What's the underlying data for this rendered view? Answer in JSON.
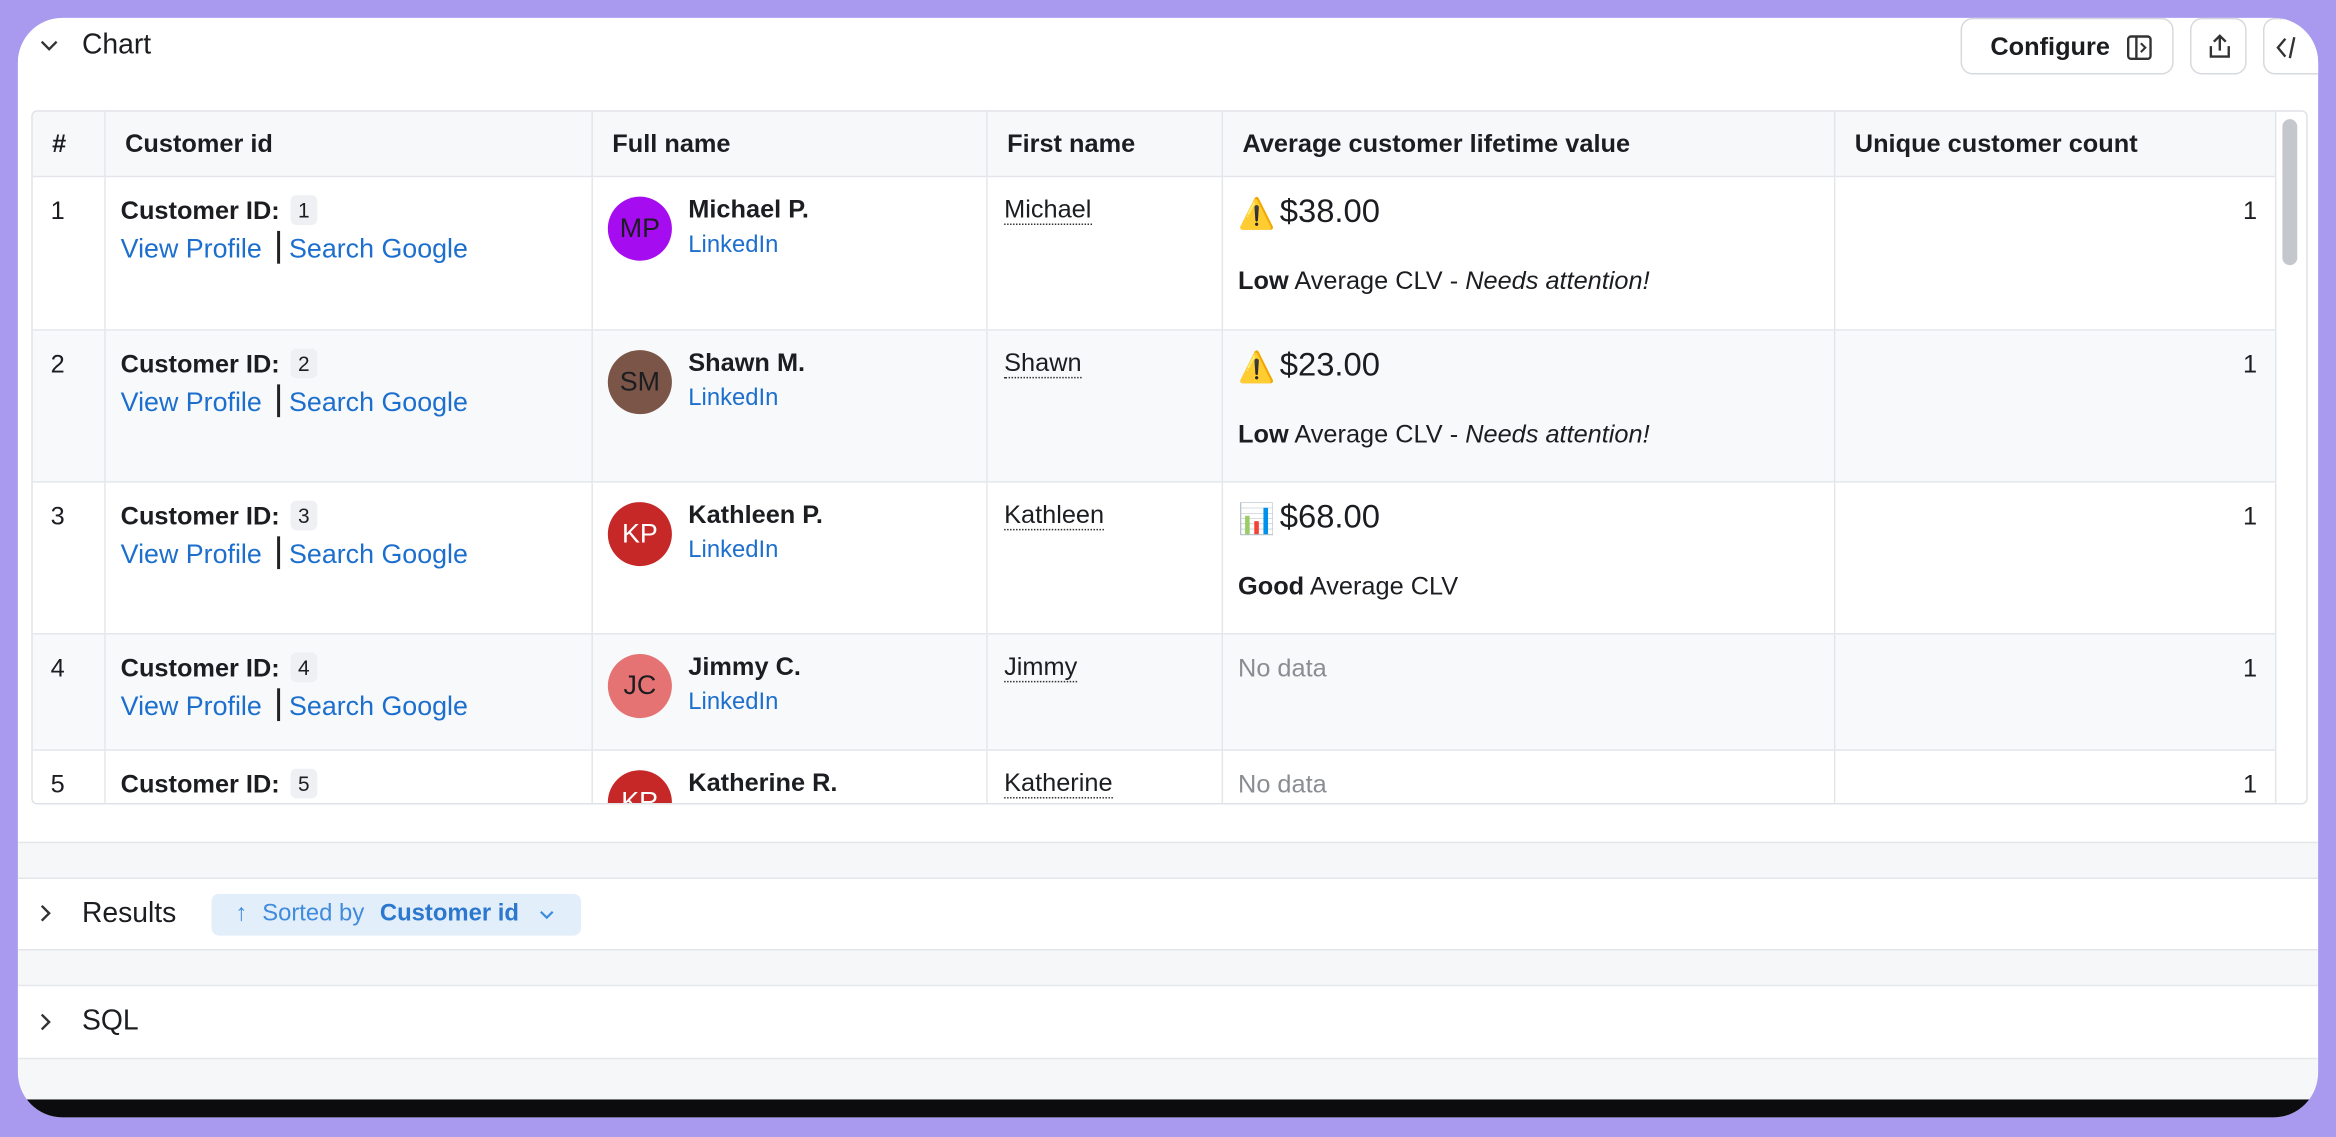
{
  "header": {
    "title": "Chart",
    "configure": "Configure"
  },
  "table": {
    "columns": [
      "#",
      "Customer id",
      "Full name",
      "First name",
      "Average customer lifetime value",
      "Unique customer count"
    ],
    "rows": [
      {
        "index": 1,
        "id_label": "Customer ID:",
        "id": 1,
        "links": [
          "View Profile",
          "Search Google"
        ],
        "initials": "MP",
        "avatar_color": "#a50df0",
        "name": "Michael P.",
        "linkedin": "LinkedIn",
        "first": "Michael",
        "clv_icon": "⚠️",
        "clv": "$38.00",
        "rating": "Low",
        "rating_rest": "Average CLV",
        "dash": "-",
        "note": "Needs attention!",
        "count": 1
      },
      {
        "index": 2,
        "id_label": "Customer ID:",
        "id": 2,
        "links": [
          "View Profile",
          "Search Google"
        ],
        "initials": "SM",
        "avatar_color": "#7a5548",
        "name": "Shawn M.",
        "linkedin": "LinkedIn",
        "first": "Shawn",
        "clv_icon": "⚠️",
        "clv": "$23.00",
        "rating": "Low",
        "rating_rest": "Average CLV",
        "dash": "-",
        "note": "Needs attention!",
        "count": 1
      },
      {
        "index": 3,
        "id_label": "Customer ID:",
        "id": 3,
        "links": [
          "View Profile",
          "Search Google"
        ],
        "initials": "KP",
        "avatar_color": "#c62828",
        "name": "Kathleen P.",
        "linkedin": "LinkedIn",
        "first": "Kathleen",
        "clv_icon": "📊",
        "clv": "$68.00",
        "rating": "Good",
        "rating_rest": "Average CLV",
        "count": 1
      },
      {
        "index": 4,
        "id_label": "Customer ID:",
        "id": 4,
        "links": [
          "View Profile",
          "Search Google"
        ],
        "initials": "JC",
        "avatar_color": "#e57373",
        "name": "Jimmy C.",
        "linkedin": "LinkedIn",
        "first": "Jimmy",
        "no_data": "No data",
        "count": 1
      },
      {
        "index": 5,
        "id_label": "Customer ID:",
        "id": 5,
        "initials": "KR",
        "avatar_color": "#c62828",
        "name": "Katherine R.",
        "first": "Katherine",
        "no_data": "No data",
        "count": 1
      }
    ]
  },
  "results": {
    "title": "Results",
    "sorted_prefix": "Sorted by",
    "sorted_field": "Customer id"
  },
  "sql": {
    "title": "SQL"
  }
}
